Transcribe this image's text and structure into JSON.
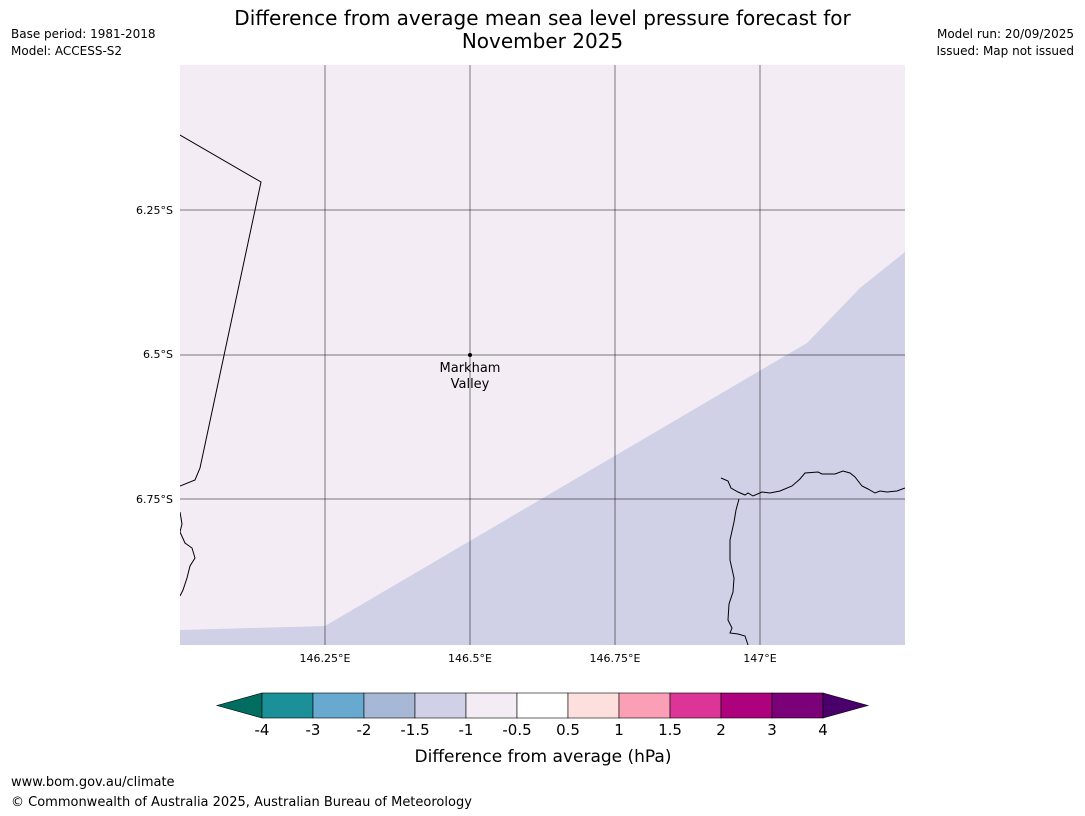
{
  "header": {
    "title_line1": "Difference from average mean sea level pressure forecast for",
    "title_line2": "November 2025",
    "base_period": "Base period: 1981-2018",
    "model": "Model: ACCESS-S2",
    "model_run": "Model run: 20/09/2025",
    "issued": "Issued: Map not issued"
  },
  "map": {
    "lat_labels": [
      "6.25°S",
      "6.5°S",
      "6.75°S"
    ],
    "lon_labels": [
      "146.25°E",
      "146.5°E",
      "146.75°E",
      "147°E"
    ],
    "place": {
      "name_line1": "Markham",
      "name_line2": "Valley"
    },
    "fill_colors": {
      "background": "#f4ecf5",
      "band_minus_1_5": "#d0d1e6"
    }
  },
  "legend": {
    "title": "Difference from average (hPa)",
    "ticks": [
      "-4",
      "-3",
      "-2",
      "-1.5",
      "-1",
      "-0.5",
      "0.5",
      "1",
      "1.5",
      "2",
      "3",
      "4"
    ],
    "colors": [
      "#006d60",
      "#1b9098",
      "#67a9cf",
      "#a6b8d6",
      "#d0d1e6",
      "#f4ecf5",
      "#ffffff",
      "#fde0dd",
      "#fa9fb5",
      "#dd3497",
      "#ae017e",
      "#7a0177",
      "#49006a"
    ]
  },
  "footer": {
    "url": "www.bom.gov.au/climate",
    "copyright": "© Commonwealth of Australia 2025, Australian Bureau of Meteorology"
  }
}
